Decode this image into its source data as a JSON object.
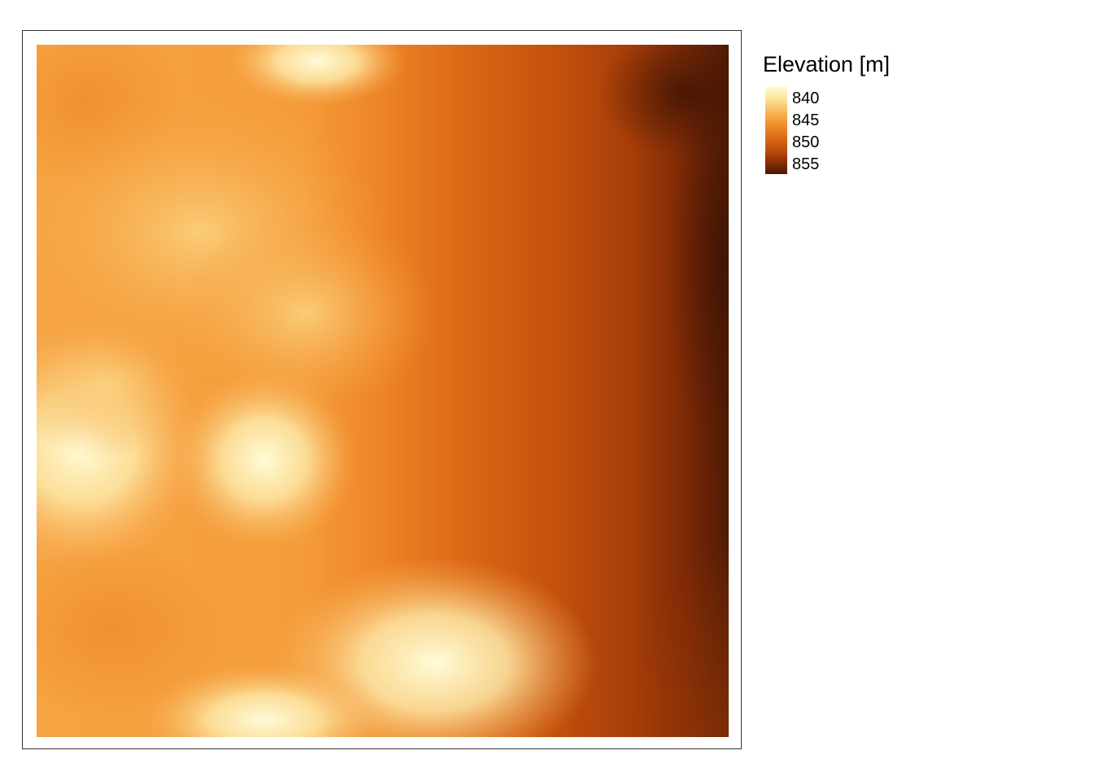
{
  "map": {
    "legend": {
      "title": "Elevation [m]",
      "labels": [
        "840",
        "845",
        "850",
        "855"
      ],
      "range": [
        839,
        857
      ],
      "palette": [
        "#fff8c8",
        "#fde39a",
        "#f9b556",
        "#f08c26",
        "#dd6a12",
        "#bf4a0a",
        "#8e2e06",
        "#4f1a04"
      ]
    },
    "raster": {
      "description_colors": {
        "low": "#fffbd4",
        "mid": "#f08c26",
        "high": "#4a1804"
      }
    }
  }
}
